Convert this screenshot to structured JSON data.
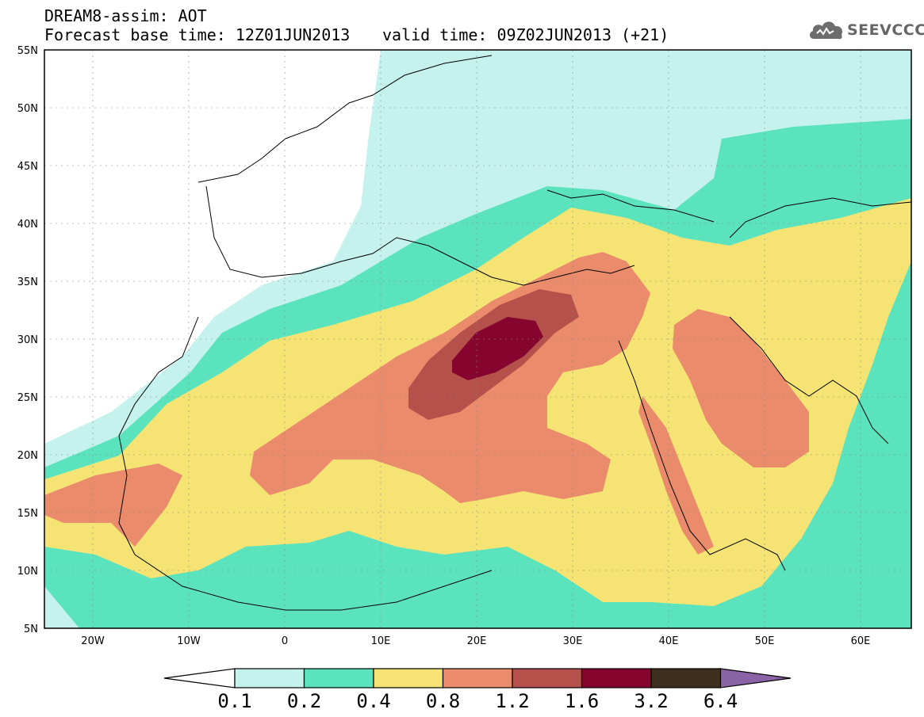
{
  "header": {
    "title": "DREAM8-assim: AOT",
    "base_time": "Forecast base time: 12Z01JUN2013",
    "valid_time": "valid time: 09Z02JUN2013 (+21)"
  },
  "logo": {
    "text": "SEEVCCC",
    "icon": "cloud-icon"
  },
  "map": {
    "lat_labels": [
      "55N",
      "50N",
      "45N",
      "40N",
      "35N",
      "30N",
      "25N",
      "20N",
      "15N",
      "10N",
      "5N"
    ],
    "lon_labels": [
      "20W",
      "10W",
      "0",
      "10E",
      "20E",
      "30E",
      "40E",
      "50E",
      "60E"
    ],
    "lon_range": [
      -25,
      65
    ],
    "lat_range": [
      5,
      55
    ]
  },
  "colorbar": {
    "labels": [
      "0.1",
      "0.2",
      "0.4",
      "0.8",
      "1.2",
      "1.6",
      "3.2",
      "6.4"
    ],
    "colors": [
      "#ffffff",
      "#c5f2ec",
      "#5be3be",
      "#f5e473",
      "#ea8c6b",
      "#b5514a",
      "#85052e",
      "#3f2d1e",
      "#8a63a6"
    ]
  }
}
